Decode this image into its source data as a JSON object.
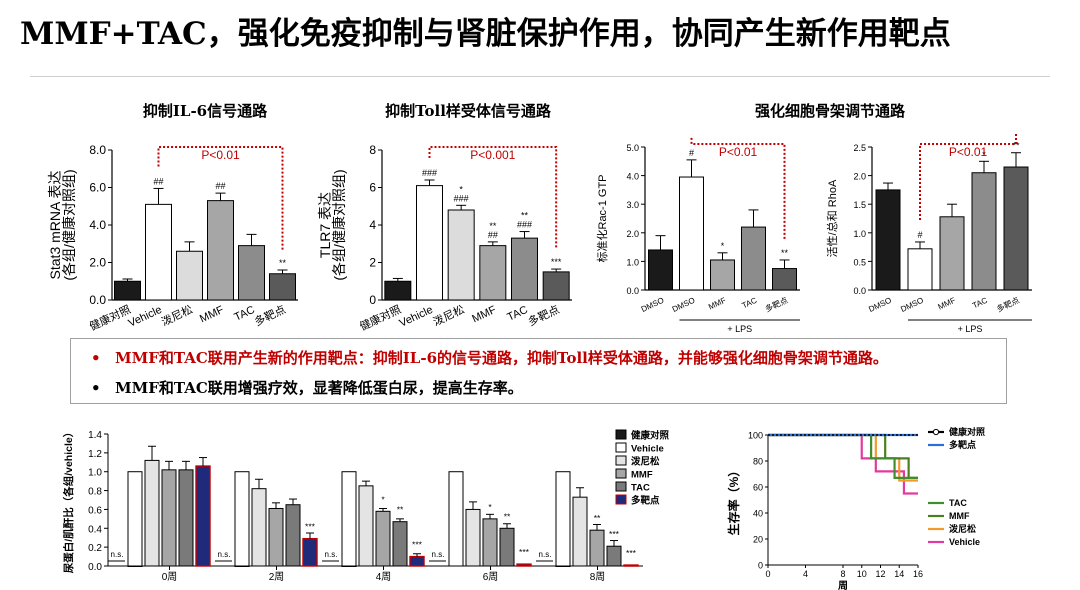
{
  "slide_title": "MMF+TAC，强化免疫抑制与肾脏保护作用，协同产生新作用靶点",
  "panel_titles": [
    "抑制IL-6信号通路",
    "抑制Toll样受体信号通路",
    "强化细胞骨架调节通路"
  ],
  "bullets": [
    "MMF和TAC联用产生新的作用靶点：抑制IL-6的信号通路，抑制Toll样受体通路，并能够强化细胞骨架调节通路。",
    "MMF和TAC联用增强疗效，显著降低蛋白尿，提高生存率。"
  ],
  "bullet_symbol": "•",
  "colors": {
    "red": "#c00000",
    "navy": "#1f2a7a",
    "blue": "#2b6fd6",
    "green": "#3e8e2c",
    "orange": "#f39a2c",
    "pink": "#e23aa0"
  },
  "chart_data": [
    {
      "type": "bar",
      "title": "抑制IL-6信号通路",
      "ylabel": [
        "Stat3 mRNA 表达",
        "(各组/健康对照组)"
      ],
      "ylim": [
        0,
        8
      ],
      "yticks": [
        "0.0",
        "2.0",
        "4.0",
        "6.0",
        "8.0"
      ],
      "categories": [
        "健康对照",
        "Vehicle",
        "泼尼松",
        "MMF",
        "TAC",
        "多靶点"
      ],
      "values": [
        1.0,
        5.1,
        2.6,
        5.3,
        2.9,
        1.4
      ],
      "errors": [
        0.12,
        0.85,
        0.5,
        0.4,
        0.6,
        0.2
      ],
      "fills": [
        "#1a1a1a",
        "#ffffff",
        "#dcdcdc",
        "#a6a6a6",
        "#8c8c8c",
        "#5a5a5a"
      ],
      "marks": [
        "",
        "##",
        "",
        "##",
        "",
        "**"
      ],
      "bracket": {
        "label": "P<0.01",
        "from": 1,
        "to": 5
      }
    },
    {
      "type": "bar",
      "title": "抑制Toll样受体信号通路",
      "ylabel": [
        "TLR7 表达",
        "(各组/健康对照组)"
      ],
      "ylim": [
        0,
        8
      ],
      "yticks": [
        "0",
        "2",
        "4",
        "6",
        "8"
      ],
      "categories": [
        "健康对照",
        "Vehicle",
        "泼尼松",
        "MMF",
        "TAC",
        "多靶点"
      ],
      "values": [
        1.0,
        6.1,
        4.8,
        2.9,
        3.3,
        1.5
      ],
      "errors": [
        0.15,
        0.3,
        0.25,
        0.2,
        0.35,
        0.15
      ],
      "fills": [
        "#1a1a1a",
        "#ffffff",
        "#dcdcdc",
        "#a6a6a6",
        "#8c8c8c",
        "#5a5a5a"
      ],
      "marks": [
        "",
        "###",
        "*\n###",
        "**\n##",
        "**\n###",
        "***"
      ],
      "bracket": {
        "label": "P<0.001",
        "from": 1,
        "to": 5
      }
    },
    {
      "type": "bar",
      "ylabel": [
        "标准化Rac-1 GTP"
      ],
      "ylim": [
        0,
        5
      ],
      "yticks": [
        "0.0",
        "1.0",
        "2.0",
        "3.0",
        "4.0",
        "5.0"
      ],
      "categories": [
        "DMSO",
        "DMSO",
        "MMF",
        "TAC",
        "多靶点"
      ],
      "values": [
        1.4,
        3.95,
        1.05,
        2.2,
        0.75
      ],
      "errors": [
        0.5,
        0.6,
        0.25,
        0.6,
        0.3
      ],
      "fills": [
        "#1a1a1a",
        "#ffffff",
        "#a6a6a6",
        "#8c8c8c",
        "#5a5a5a"
      ],
      "marks": [
        "",
        "#",
        "*",
        "",
        "**"
      ],
      "bracket": {
        "label": "P<0.01",
        "from": 1,
        "to": 4
      },
      "group_label": "+ LPS"
    },
    {
      "type": "bar",
      "ylabel": [
        "活性/总和 RhoA"
      ],
      "ylim": [
        0,
        2.5
      ],
      "yticks": [
        "0.0",
        "0.5",
        "1.0",
        "1.5",
        "2.0",
        "2.5"
      ],
      "categories": [
        "DMSO",
        "DMSO",
        "MMF",
        "TAC",
        "多靶点"
      ],
      "values": [
        1.75,
        0.72,
        1.28,
        2.05,
        2.15
      ],
      "errors": [
        0.12,
        0.12,
        0.22,
        0.2,
        0.25
      ],
      "fills": [
        "#1a1a1a",
        "#ffffff",
        "#a6a6a6",
        "#8c8c8c",
        "#5a5a5a"
      ],
      "marks": [
        "",
        "#",
        "",
        "*",
        "**"
      ],
      "bracket": {
        "label": "P<0.01",
        "from": 1,
        "to": 4
      },
      "group_label": "+ LPS"
    },
    {
      "type": "bar",
      "ylabel": [
        "尿蛋白/肌酐比（各组/vehicle）"
      ],
      "ylim": [
        0,
        1.4
      ],
      "yticks": [
        "0.0",
        "0.2",
        "0.4",
        "0.6",
        "0.8",
        "1.0",
        "1.2",
        "1.4"
      ],
      "categories": [
        "0周",
        "2周",
        "4周",
        "6周",
        "8周"
      ],
      "series": [
        {
          "name": "健康对照",
          "fill": "#1a1a1a",
          "values": [
            0,
            0,
            0,
            0.07,
            0
          ]
        },
        {
          "name": "Vehicle",
          "fill": "#ffffff",
          "values": [
            1.0,
            1.0,
            1.0,
            1.0,
            1.0
          ]
        },
        {
          "name": "泼尼松",
          "fill": "#e4e4e4",
          "values": [
            1.12,
            0.82,
            0.85,
            0.6,
            0.73
          ]
        },
        {
          "name": "MMF",
          "fill": "#a6a6a6",
          "values": [
            1.02,
            0.61,
            0.58,
            0.5,
            0.38
          ]
        },
        {
          "name": "TAC",
          "fill": "#7a7a7a",
          "values": [
            1.02,
            0.65,
            0.47,
            0.4,
            0.21
          ]
        },
        {
          "name": "多靶点",
          "fill": "#1f2a7a",
          "values": [
            1.06,
            0.29,
            0.1,
            0.02,
            0.01
          ]
        }
      ],
      "errors": [
        0.15,
        0.1,
        0.05,
        0.08,
        0.1
      ],
      "group_marks": [
        [
          "",
          "",
          "",
          "",
          "",
          ""
        ],
        [
          "",
          "",
          "",
          "",
          "",
          "***"
        ],
        [
          "",
          "",
          "",
          "*",
          "**",
          "***"
        ],
        [
          "",
          "",
          "",
          "*",
          "**",
          "***"
        ],
        [
          "",
          "",
          "",
          "**",
          "***",
          "***"
        ]
      ],
      "ns_label": "n.s."
    },
    {
      "type": "line",
      "ylabel": "生存率（%）",
      "xlabel": "周",
      "xlim": [
        0,
        16
      ],
      "ylim": [
        0,
        100
      ],
      "xticks": [
        "0",
        "4",
        "8",
        "10",
        "12",
        "14",
        "16"
      ],
      "yticks": [
        "0",
        "20",
        "40",
        "60",
        "80",
        "100"
      ],
      "series": [
        {
          "name": "健康对照",
          "color": "#000000",
          "x": [
            0,
            16
          ],
          "y": [
            100,
            100
          ]
        },
        {
          "name": "多靶点",
          "color": "#2b6fd6",
          "x": [
            0,
            16
          ],
          "y": [
            100,
            100
          ]
        },
        {
          "name": "TAC",
          "color": "#3e8e2c",
          "x": [
            0,
            11,
            11,
            13.5,
            13.5,
            16
          ],
          "y": [
            100,
            100,
            82,
            82,
            67,
            67
          ]
        },
        {
          "name": "MMF",
          "color": "#4d7f1e",
          "x": [
            0,
            12.5,
            12.5,
            15,
            15,
            16
          ],
          "y": [
            100,
            100,
            82,
            82,
            67,
            67
          ]
        },
        {
          "name": "泼尼松",
          "color": "#f39a2c",
          "x": [
            0,
            11.5,
            11.5,
            14,
            14,
            16
          ],
          "y": [
            100,
            100,
            82,
            82,
            65,
            65
          ]
        },
        {
          "name": "Vehicle",
          "color": "#e23aa0",
          "x": [
            0,
            10,
            10,
            11.5,
            11.5,
            14.5,
            14.5,
            16
          ],
          "y": [
            100,
            100,
            82,
            82,
            72,
            72,
            55,
            55
          ]
        }
      ]
    }
  ]
}
